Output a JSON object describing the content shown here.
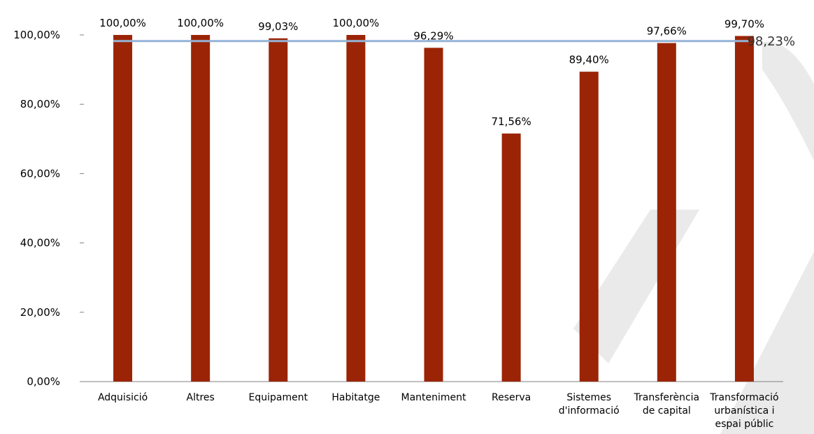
{
  "chart_data": {
    "type": "bar",
    "categories": [
      [
        "Adquisició"
      ],
      [
        "Altres"
      ],
      [
        "Equipament"
      ],
      [
        "Habitatge"
      ],
      [
        "Manteniment"
      ],
      [
        "Reserva"
      ],
      [
        "Sistemes",
        "d'informació"
      ],
      [
        "Transferència",
        "de capital"
      ],
      [
        "Transformació",
        "urbanística i",
        "espai públic"
      ]
    ],
    "values": [
      100.0,
      100.0,
      99.03,
      100.0,
      96.29,
      71.56,
      89.4,
      97.66,
      99.7
    ],
    "value_labels": [
      "100,00%",
      "100,00%",
      "99,03%",
      "100,00%",
      "96,29%",
      "71,56%",
      "89,40%",
      "97,66%",
      "99,70%"
    ],
    "reference_line": {
      "value": 98.23,
      "label": "98,23%",
      "color": "#95b3d7"
    },
    "y_ticks": [
      {
        "value": 0,
        "label": "0,00%"
      },
      {
        "value": 20,
        "label": "20,00%"
      },
      {
        "value": 40,
        "label": "40,00%"
      },
      {
        "value": 60,
        "label": "60,00%"
      },
      {
        "value": 80,
        "label": "80,00%"
      },
      {
        "value": 100,
        "label": "100,00%"
      }
    ],
    "ylim": [
      0,
      100
    ],
    "grid": false,
    "title": "",
    "xlabel": "",
    "ylabel": "",
    "colors": {
      "bar": "#9b2406",
      "axis": "#808080"
    }
  }
}
